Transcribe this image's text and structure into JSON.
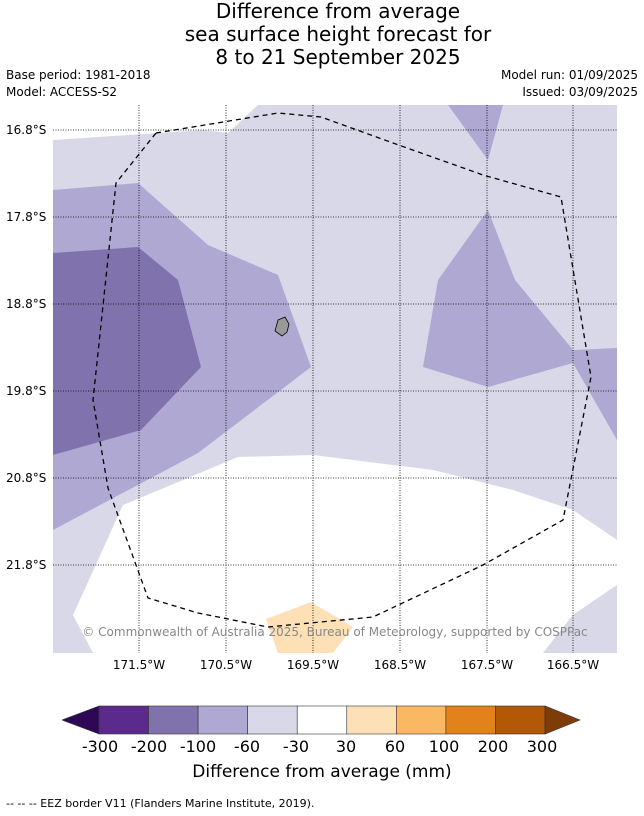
{
  "title": {
    "line1": "Difference from average",
    "line2": "sea surface height forecast for",
    "line3": "8 to 21 September 2025"
  },
  "meta": {
    "base_period": "Base period: 1981-2018",
    "model": "Model: ACCESS-S2",
    "model_run": "Model run: 01/09/2025",
    "issued": "Issued: 03/09/2025"
  },
  "map": {
    "copyright": "© Commonwealth of Australia 2025, Bureau of Meteorology, supported by COSPPac",
    "lat_labels": [
      "16.8°S",
      "17.8°S",
      "18.8°S",
      "19.8°S",
      "20.8°S",
      "21.8°S"
    ],
    "lon_labels": [
      "171.5°W",
      "170.5°W",
      "169.5°W",
      "168.5°W",
      "167.5°W",
      "166.5°W"
    ]
  },
  "colorbar": {
    "labels": [
      "-300",
      "-200",
      "-100",
      "-60",
      "-30",
      "30",
      "60",
      "100",
      "200",
      "300"
    ],
    "colors": [
      "#2e0854",
      "#5b2a8c",
      "#8073ad",
      "#aea8d2",
      "#d8d8e9",
      "#ffffff",
      "#fde0b6",
      "#fbb862",
      "#e1821a",
      "#b35807",
      "#7f3b08"
    ],
    "title": "Difference from average (mm)"
  },
  "footnote": "--  --  -- EEZ border V11 (Flanders Marine Institute, 2019)."
}
